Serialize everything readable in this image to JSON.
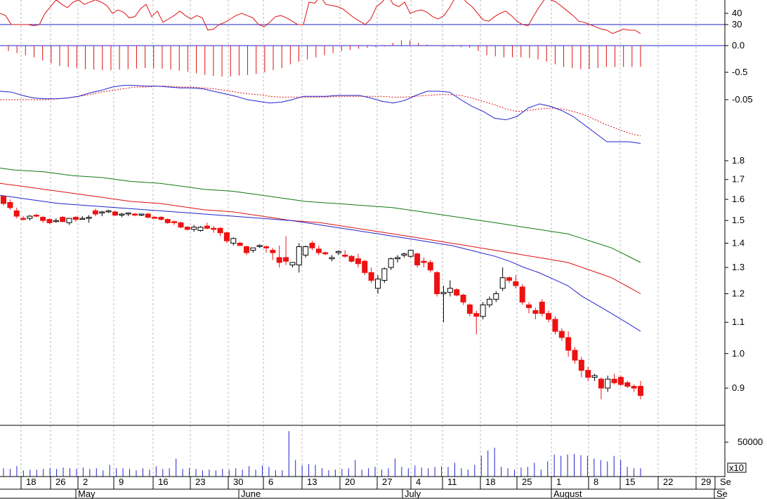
{
  "chart_data": {
    "type": "candlestick",
    "colors": {
      "up": "#000000",
      "down": "#ee1111",
      "ma_short": "#2222cc",
      "ma_mid": "#dd1111",
      "ma_long": "#117711",
      "rsi": "#dd1111",
      "macd_hist": "#dd1111",
      "macd": "#2222cc",
      "signal": "#dd1111",
      "volume": "#2222cc",
      "grid": "#bbbbbb"
    },
    "rsi": {
      "ticks": [
        "40",
        "30"
      ],
      "levels": [
        40,
        30
      ],
      "reference": 30,
      "values": [
        40,
        38,
        30,
        30,
        30,
        30,
        29,
        30,
        40,
        46,
        52,
        48,
        45,
        50,
        52,
        48,
        50,
        52,
        50,
        47,
        40,
        43,
        41,
        36,
        37,
        44,
        48,
        37,
        42,
        32,
        35,
        38,
        42,
        38,
        35,
        38,
        36,
        25,
        26,
        30,
        32,
        35,
        38,
        40,
        38,
        36,
        30,
        28,
        32,
        37,
        38,
        36,
        33,
        30,
        30,
        50,
        49,
        55,
        48,
        47,
        46,
        44,
        40,
        36,
        33,
        30,
        35,
        46,
        50,
        56,
        48,
        46,
        50,
        40,
        42,
        43,
        41,
        37,
        35,
        38,
        45,
        54,
        56,
        50,
        46,
        40,
        34,
        33,
        37,
        40,
        42,
        38,
        33,
        30,
        29,
        38,
        46,
        53,
        52,
        50,
        46,
        42,
        38,
        33,
        32,
        30,
        28,
        26,
        25,
        22,
        24,
        26,
        25,
        25,
        22
      ]
    },
    "macd_hist": {
      "ticks": [
        "0.0",
        "-0.5"
      ],
      "levels": [
        0.0,
        -0.5
      ],
      "values": [
        -0.1,
        -0.14,
        -0.18,
        -0.22,
        -0.28,
        -0.33,
        -0.38,
        -0.4,
        -0.42,
        -0.44,
        -0.45,
        -0.46,
        -0.46,
        -0.45,
        -0.44,
        -0.43,
        -0.42,
        -0.42,
        -0.43,
        -0.45,
        -0.47,
        -0.49,
        -0.52,
        -0.55,
        -0.57,
        -0.58,
        -0.58,
        -0.56,
        -0.55,
        -0.53,
        -0.5,
        -0.46,
        -0.42,
        -0.35,
        -0.3,
        -0.26,
        -0.22,
        -0.18,
        -0.14,
        -0.1,
        -0.08,
        -0.06,
        -0.04,
        -0.03,
        -0.02,
        0.05,
        0.1,
        0.1,
        0.05,
        0.02,
        -0.01,
        -0.02,
        -0.02,
        -0.03,
        -0.04,
        -0.1,
        -0.18,
        -0.2,
        -0.22,
        -0.22,
        -0.22,
        -0.23,
        -0.26,
        -0.3,
        -0.35,
        -0.4,
        -0.42,
        -0.44,
        -0.44,
        -0.42,
        -0.4,
        -0.4,
        -0.4,
        -0.4,
        -0.4
      ]
    },
    "macd": {
      "ticks": [
        "-0.05"
      ],
      "levels": [
        -0.05
      ],
      "macd_values": [
        -0.04,
        -0.041,
        -0.045,
        -0.048,
        -0.049,
        -0.049,
        -0.048,
        -0.046,
        -0.042,
        -0.039,
        -0.035,
        -0.033,
        -0.033,
        -0.034,
        -0.034,
        -0.035,
        -0.036,
        -0.036,
        -0.037,
        -0.04,
        -0.043,
        -0.046,
        -0.05,
        -0.052,
        -0.054,
        -0.053,
        -0.05,
        -0.046,
        -0.046,
        -0.046,
        -0.045,
        -0.045,
        -0.045,
        -0.048,
        -0.052,
        -0.054,
        -0.051,
        -0.045,
        -0.04,
        -0.04,
        -0.041,
        -0.05,
        -0.058,
        -0.064,
        -0.072,
        -0.074,
        -0.07,
        -0.06,
        -0.055,
        -0.058,
        -0.063,
        -0.07,
        -0.08,
        -0.09,
        -0.1,
        -0.1,
        -0.1,
        -0.102
      ],
      "signal_values": [
        -0.05,
        -0.05,
        -0.05,
        -0.05,
        -0.05,
        -0.049,
        -0.048,
        -0.046,
        -0.044,
        -0.041,
        -0.039,
        -0.037,
        -0.035,
        -0.035,
        -0.034,
        -0.034,
        -0.035,
        -0.035,
        -0.036,
        -0.037,
        -0.039,
        -0.041,
        -0.043,
        -0.044,
        -0.046,
        -0.047,
        -0.047,
        -0.047,
        -0.047,
        -0.047,
        -0.046,
        -0.046,
        -0.046,
        -0.046,
        -0.046,
        -0.047,
        -0.047,
        -0.046,
        -0.045,
        -0.044,
        -0.044,
        -0.045,
        -0.048,
        -0.052,
        -0.056,
        -0.061,
        -0.064,
        -0.063,
        -0.061,
        -0.06,
        -0.061,
        -0.064,
        -0.068,
        -0.074,
        -0.08,
        -0.085,
        -0.09,
        -0.093
      ]
    },
    "price": {
      "ticks": [
        "1.8",
        "1.7",
        "1.6",
        "1.5",
        "1.4",
        "1.3",
        "1.2",
        "1.1",
        "1.0",
        "0.9"
      ],
      "levels": [
        1.8,
        1.7,
        1.6,
        1.5,
        1.4,
        1.3,
        1.2,
        1.1,
        1.0,
        0.9
      ],
      "ohlc": [
        [
          1.615,
          1.62,
          1.57,
          1.58
        ],
        [
          1.585,
          1.6,
          1.55,
          1.56
        ],
        [
          1.545,
          1.56,
          1.51,
          1.52
        ],
        [
          1.51,
          1.52,
          1.5,
          1.505
        ],
        [
          1.51,
          1.525,
          1.5,
          1.52
        ],
        [
          1.525,
          1.53,
          1.515,
          1.52
        ],
        [
          1.515,
          1.52,
          1.49,
          1.5
        ],
        [
          1.505,
          1.51,
          1.485,
          1.49
        ],
        [
          1.495,
          1.51,
          1.49,
          1.5
        ],
        [
          1.515,
          1.52,
          1.5,
          1.495
        ],
        [
          1.49,
          1.51,
          1.48,
          1.51
        ],
        [
          1.515,
          1.52,
          1.495,
          1.505
        ],
        [
          1.51,
          1.52,
          1.505,
          1.51
        ],
        [
          1.51,
          1.525,
          1.49,
          1.515
        ],
        [
          1.545,
          1.555,
          1.52,
          1.53
        ],
        [
          1.535,
          1.545,
          1.52,
          1.54
        ],
        [
          1.54,
          1.55,
          1.535,
          1.545
        ],
        [
          1.54,
          1.545,
          1.52,
          1.525
        ],
        [
          1.525,
          1.535,
          1.515,
          1.53
        ],
        [
          1.53,
          1.535,
          1.52,
          1.535
        ],
        [
          1.53,
          1.535,
          1.52,
          1.525
        ],
        [
          1.525,
          1.53,
          1.52,
          1.53
        ],
        [
          1.53,
          1.535,
          1.51,
          1.515
        ],
        [
          1.515,
          1.52,
          1.51,
          1.51
        ],
        [
          1.515,
          1.52,
          1.5,
          1.505
        ],
        [
          1.505,
          1.51,
          1.485,
          1.49
        ],
        [
          1.495,
          1.5,
          1.48,
          1.49
        ],
        [
          1.49,
          1.495,
          1.465,
          1.47
        ],
        [
          1.47,
          1.475,
          1.455,
          1.46
        ],
        [
          1.46,
          1.48,
          1.45,
          1.47
        ],
        [
          1.455,
          1.475,
          1.45,
          1.47
        ],
        [
          1.475,
          1.49,
          1.46,
          1.465
        ],
        [
          1.465,
          1.475,
          1.445,
          1.46
        ],
        [
          1.465,
          1.47,
          1.43,
          1.445
        ],
        [
          1.445,
          1.45,
          1.4,
          1.41
        ],
        [
          1.4,
          1.425,
          1.39,
          1.42
        ],
        [
          1.4,
          1.405,
          1.39,
          1.39
        ],
        [
          1.385,
          1.39,
          1.35,
          1.36
        ],
        [
          1.37,
          1.38,
          1.36,
          1.38
        ],
        [
          1.39,
          1.395,
          1.38,
          1.39
        ],
        [
          1.385,
          1.39,
          1.36,
          1.38
        ],
        [
          1.37,
          1.38,
          1.33,
          1.36
        ],
        [
          1.34,
          1.39,
          1.3,
          1.32
        ],
        [
          1.34,
          1.43,
          1.31,
          1.325
        ],
        [
          1.31,
          1.32,
          1.3,
          1.32
        ],
        [
          1.31,
          1.4,
          1.28,
          1.385
        ],
        [
          1.35,
          1.39,
          1.34,
          1.385
        ],
        [
          1.4,
          1.41,
          1.37,
          1.38
        ],
        [
          1.375,
          1.39,
          1.35,
          1.36
        ],
        [
          1.36,
          1.365,
          1.35,
          1.355
        ],
        [
          1.335,
          1.35,
          1.325,
          1.34
        ],
        [
          1.36,
          1.37,
          1.35,
          1.365
        ],
        [
          1.35,
          1.37,
          1.34,
          1.345
        ],
        [
          1.345,
          1.35,
          1.32,
          1.325
        ],
        [
          1.335,
          1.355,
          1.3,
          1.315
        ],
        [
          1.325,
          1.33,
          1.27,
          1.28
        ],
        [
          1.28,
          1.3,
          1.24,
          1.25
        ],
        [
          1.22,
          1.27,
          1.2,
          1.255
        ],
        [
          1.25,
          1.3,
          1.24,
          1.295
        ],
        [
          1.3,
          1.34,
          1.29,
          1.335
        ],
        [
          1.335,
          1.35,
          1.32,
          1.34
        ],
        [
          1.35,
          1.36,
          1.34,
          1.355
        ],
        [
          1.345,
          1.37,
          1.34,
          1.37
        ],
        [
          1.355,
          1.36,
          1.3,
          1.31
        ],
        [
          1.325,
          1.34,
          1.3,
          1.32
        ],
        [
          1.32,
          1.33,
          1.28,
          1.29
        ],
        [
          1.28,
          1.285,
          1.19,
          1.2
        ],
        [
          1.2,
          1.23,
          1.1,
          1.205
        ],
        [
          1.205,
          1.25,
          1.19,
          1.22
        ],
        [
          1.215,
          1.22,
          1.19,
          1.195
        ],
        [
          1.195,
          1.2,
          1.16,
          1.17
        ],
        [
          1.16,
          1.165,
          1.12,
          1.13
        ],
        [
          1.13,
          1.14,
          1.06,
          1.12
        ],
        [
          1.12,
          1.17,
          1.11,
          1.16
        ],
        [
          1.16,
          1.19,
          1.15,
          1.18
        ],
        [
          1.18,
          1.21,
          1.17,
          1.2
        ],
        [
          1.22,
          1.3,
          1.21,
          1.26
        ],
        [
          1.26,
          1.265,
          1.24,
          1.25
        ],
        [
          1.245,
          1.27,
          1.22,
          1.23
        ],
        [
          1.225,
          1.235,
          1.16,
          1.17
        ],
        [
          1.16,
          1.17,
          1.13,
          1.15
        ],
        [
          1.14,
          1.15,
          1.11,
          1.13
        ],
        [
          1.17,
          1.18,
          1.12,
          1.13
        ],
        [
          1.13,
          1.14,
          1.1,
          1.11
        ],
        [
          1.11,
          1.12,
          1.06,
          1.07
        ],
        [
          1.07,
          1.08,
          1.04,
          1.05
        ],
        [
          1.05,
          1.07,
          0.99,
          1.01
        ],
        [
          1.01,
          1.02,
          0.97,
          0.98
        ],
        [
          0.98,
          0.99,
          0.93,
          0.95
        ],
        [
          0.95,
          0.96,
          0.92,
          0.93
        ],
        [
          0.93,
          0.94,
          0.92,
          0.935
        ],
        [
          0.925,
          0.93,
          0.87,
          0.9
        ],
        [
          0.9,
          0.935,
          0.89,
          0.925
        ],
        [
          0.925,
          0.94,
          0.91,
          0.915
        ],
        [
          0.93,
          0.935,
          0.905,
          0.91
        ],
        [
          0.915,
          0.92,
          0.9,
          0.905
        ],
        [
          0.905,
          0.91,
          0.89,
          0.9
        ],
        [
          0.905,
          0.92,
          0.87,
          0.88
        ]
      ],
      "ma_short": [
        1.62,
        1.61,
        1.6,
        1.59,
        1.58,
        1.575,
        1.57,
        1.565,
        1.56,
        1.555,
        1.55,
        1.545,
        1.54,
        1.535,
        1.53,
        1.525,
        1.52,
        1.515,
        1.51,
        1.505,
        1.5,
        1.49,
        1.48,
        1.47,
        1.46,
        1.45,
        1.44,
        1.43,
        1.42,
        1.41,
        1.4,
        1.39,
        1.375,
        1.36,
        1.345,
        1.325,
        1.3,
        1.28,
        1.255,
        1.23,
        1.19,
        1.16,
        1.13,
        1.1,
        1.07
      ],
      "ma_mid": [
        1.68,
        1.67,
        1.66,
        1.65,
        1.64,
        1.63,
        1.62,
        1.61,
        1.6,
        1.59,
        1.585,
        1.58,
        1.57,
        1.56,
        1.55,
        1.545,
        1.54,
        1.53,
        1.52,
        1.51,
        1.5,
        1.495,
        1.49,
        1.48,
        1.47,
        1.46,
        1.45,
        1.44,
        1.43,
        1.42,
        1.41,
        1.4,
        1.39,
        1.38,
        1.37,
        1.36,
        1.35,
        1.34,
        1.33,
        1.32,
        1.3,
        1.28,
        1.26,
        1.23,
        1.2
      ],
      "ma_long": [
        1.76,
        1.75,
        1.745,
        1.74,
        1.73,
        1.72,
        1.715,
        1.71,
        1.7,
        1.69,
        1.685,
        1.68,
        1.67,
        1.66,
        1.65,
        1.645,
        1.64,
        1.63,
        1.62,
        1.61,
        1.6,
        1.59,
        1.585,
        1.58,
        1.575,
        1.57,
        1.565,
        1.56,
        1.55,
        1.54,
        1.53,
        1.52,
        1.51,
        1.5,
        1.49,
        1.48,
        1.47,
        1.46,
        1.45,
        1.44,
        1.42,
        1.4,
        1.38,
        1.35,
        1.32
      ]
    },
    "volume": {
      "ticks": [
        "50000"
      ],
      "levels": [
        50000
      ],
      "multiplier_label": "x10",
      "values": [
        12000,
        11000,
        15000,
        9000,
        10000,
        10000,
        11000,
        12000,
        11000,
        13000,
        12000,
        11000,
        13000,
        11000,
        12000,
        9000,
        17000,
        12000,
        12000,
        11000,
        9000,
        12000,
        10000,
        15000,
        11000,
        12000,
        26000,
        11000,
        12000,
        11000,
        9000,
        10000,
        9000,
        11000,
        10000,
        12000,
        10000,
        15000,
        10000,
        16000,
        14000,
        9000,
        9000,
        66000,
        24000,
        16000,
        18000,
        17000,
        12000,
        9000,
        10000,
        11000,
        12000,
        24000,
        10000,
        12000,
        14000,
        10000,
        12000,
        26000,
        14000,
        12000,
        16000,
        13000,
        12000,
        14000,
        15000,
        14000,
        20000,
        12000,
        10000,
        17000,
        30000,
        38000,
        42000,
        14000,
        12000,
        10000,
        13000,
        14000,
        20000,
        10000,
        22000,
        32000,
        30000,
        32000,
        33000,
        31000,
        30000,
        26000,
        24000,
        22000,
        30000,
        24000,
        14000,
        12000,
        12000
      ]
    },
    "x_axis": {
      "day_ticks": [
        "18",
        "26",
        "2",
        "9",
        "16",
        "23",
        "30",
        "6",
        "13",
        "20",
        "27",
        "4",
        "11",
        "18",
        "25",
        "1",
        "8",
        "15",
        "22",
        "29",
        "Se"
      ],
      "month_ticks": [
        "May",
        "June",
        "July",
        "August",
        "Se"
      ]
    }
  }
}
